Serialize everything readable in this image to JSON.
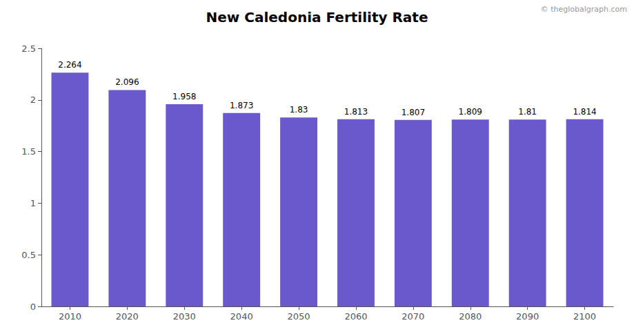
{
  "chart_data": {
    "type": "bar",
    "title": "New Caledonia Fertility Rate",
    "categories": [
      2010,
      2020,
      2030,
      2040,
      2050,
      2060,
      2070,
      2080,
      2090,
      2100
    ],
    "values": [
      2.264,
      2.096,
      1.958,
      1.873,
      1.83,
      1.813,
      1.807,
      1.809,
      1.81,
      1.814
    ],
    "color": "#6959CD",
    "ylim": [
      0,
      2.5
    ],
    "yticks": [
      0,
      0.5,
      1,
      1.5,
      2,
      2.5
    ],
    "grid": false,
    "data_labels": true,
    "annotations": [
      "© theglobalgraph.com"
    ]
  }
}
